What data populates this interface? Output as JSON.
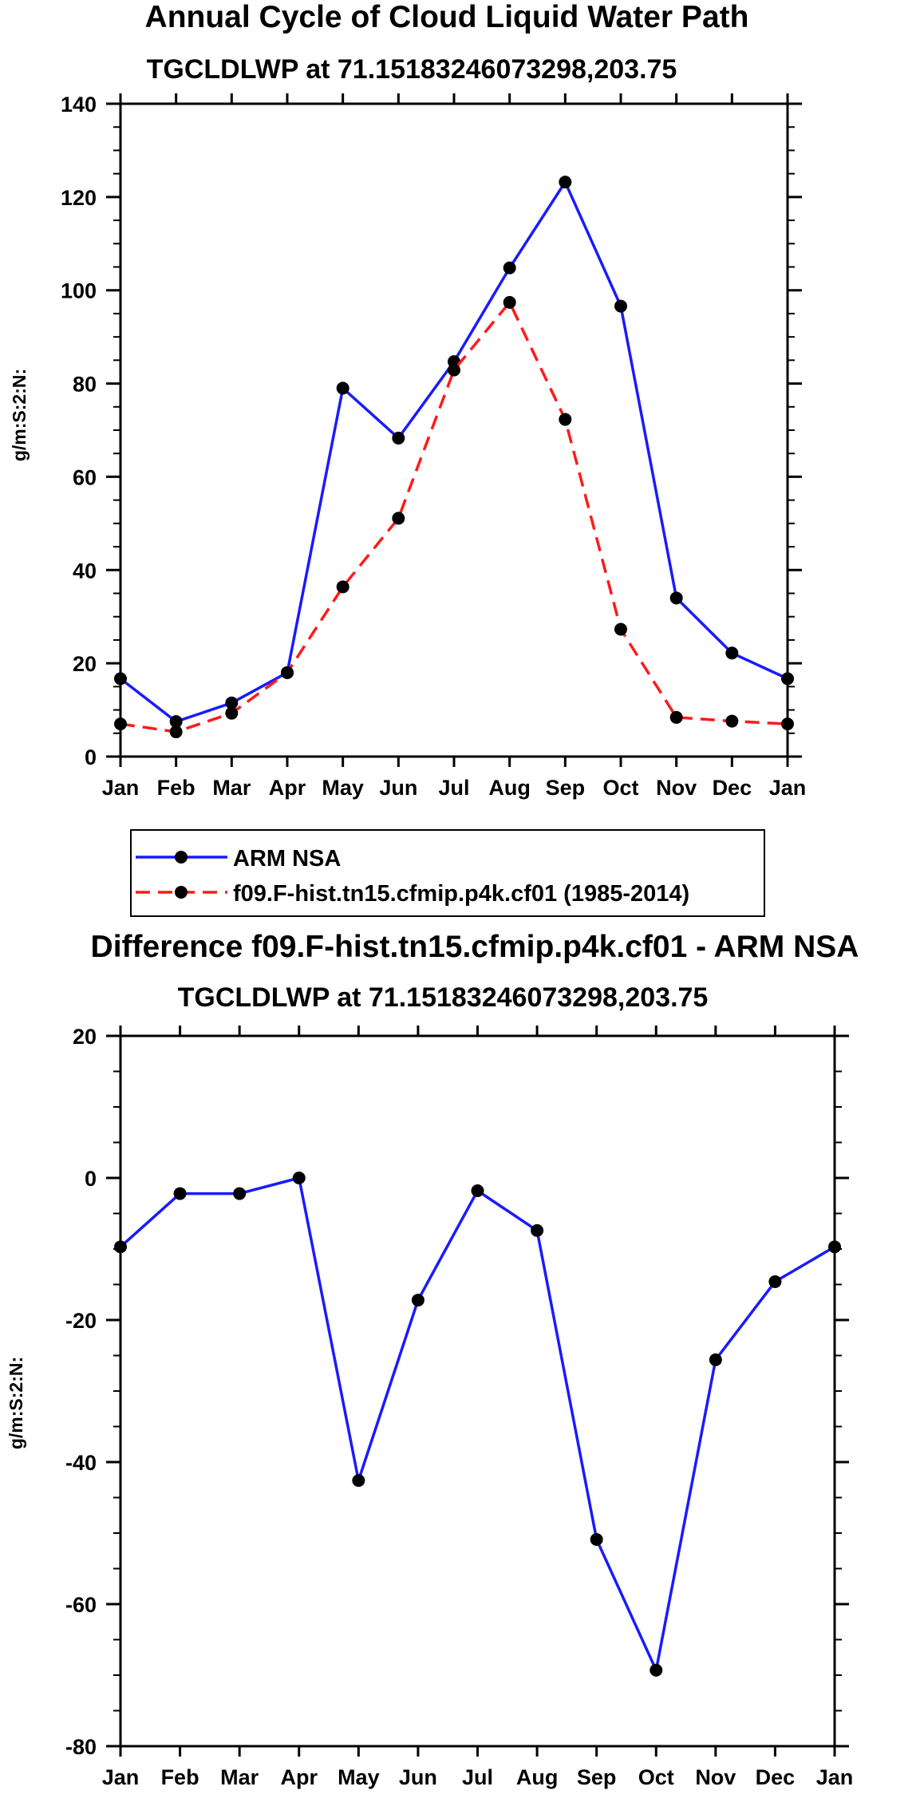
{
  "colors": {
    "series_1": "#1a1aff",
    "series_2": "#ff1a1a",
    "marker": "#000000"
  },
  "chart_data": [
    {
      "type": "line",
      "title": "Annual Cycle of Cloud Liquid Water Path",
      "subtitle": "TGCLDLWP at 71.15183246073298,203.75",
      "ylabel": "g/m:S:2:N:",
      "xlabel": "",
      "categories": [
        "Jan",
        "Feb",
        "Mar",
        "Apr",
        "May",
        "Jun",
        "Jul",
        "Aug",
        "Sep",
        "Oct",
        "Nov",
        "Dec",
        "Jan"
      ],
      "ylim": [
        0,
        140
      ],
      "yticks": [
        0,
        20,
        40,
        60,
        80,
        100,
        120,
        140
      ],
      "ytick_labels": [
        "0",
        "20",
        "40",
        "60",
        "80",
        "100",
        "120",
        "140"
      ],
      "series": [
        {
          "name": "ARM NSA",
          "style": "solid",
          "color": "#1a1aff",
          "values": [
            16.7,
            7.5,
            11.5,
            18.0,
            79.0,
            68.3,
            84.7,
            104.8,
            123.2,
            96.6,
            34.0,
            22.2,
            16.7
          ]
        },
        {
          "name": "f09.F-hist.tn15.cfmip.p4k.cf01 (1985-2014)",
          "style": "dashed",
          "color": "#ff1a1a",
          "values": [
            7.0,
            5.3,
            9.3,
            18.0,
            36.4,
            51.1,
            82.9,
            97.4,
            72.3,
            27.3,
            8.4,
            7.6,
            7.0
          ]
        }
      ],
      "legend": {
        "placement": "below",
        "entries": [
          "ARM NSA",
          "f09.F-hist.tn15.cfmip.p4k.cf01 (1985-2014)"
        ]
      }
    },
    {
      "type": "line",
      "title": "Difference f09.F-hist.tn15.cfmip.p4k.cf01 - ARM NSA",
      "subtitle": "TGCLDLWP at 71.15183246073298,203.75",
      "ylabel": "g/m:S:2:N:",
      "xlabel": "",
      "categories": [
        "Jan",
        "Feb",
        "Mar",
        "Apr",
        "May",
        "Jun",
        "Jul",
        "Aug",
        "Sep",
        "Oct",
        "Nov",
        "Dec",
        "Jan"
      ],
      "ylim": [
        -80,
        20
      ],
      "yticks": [
        -80,
        -60,
        -40,
        -20,
        0,
        20
      ],
      "ytick_labels": [
        "-80",
        "-60",
        "-40",
        "-20",
        "0",
        "20"
      ],
      "series": [
        {
          "name": "Difference",
          "style": "solid",
          "color": "#1a1aff",
          "values": [
            -9.7,
            -2.2,
            -2.2,
            0.0,
            -42.6,
            -17.2,
            -1.8,
            -7.4,
            -50.9,
            -69.3,
            -25.6,
            -14.6,
            -9.7
          ]
        }
      ]
    }
  ]
}
